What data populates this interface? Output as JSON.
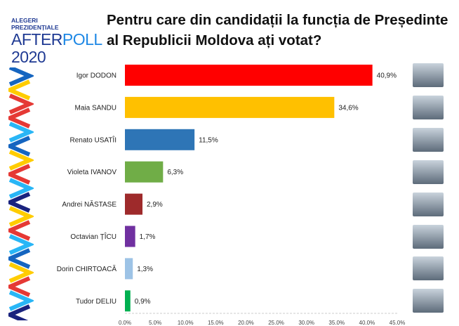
{
  "logo": {
    "line1": "ALEGERI",
    "line2": "PREZIDENȚIALE",
    "after": "AFTER",
    "poll": "POLL",
    "year": "2020"
  },
  "title": "Pentru care din candidații la funcția de Președinte al Republicii Moldova ați votat?",
  "chart_data": {
    "type": "bar",
    "orientation": "horizontal",
    "title": "Pentru care din candidații la funcția de Președinte al Republicii Moldova ați votat?",
    "categories": [
      "Igor DODON",
      "Maia SANDU",
      "Renato USATÎI",
      "Violeta IVANOV",
      "Andrei NĂSTASE",
      "Octavian ȚÎCU",
      "Dorin CHIRTOACĂ",
      "Tudor DELIU"
    ],
    "values": [
      40.9,
      34.6,
      11.5,
      6.3,
      2.9,
      1.7,
      1.3,
      0.9
    ],
    "data_labels": [
      "40,9%",
      "34,6%",
      "11,5%",
      "6,3%",
      "2,9%",
      "1,7%",
      "1,3%",
      "0,9%"
    ],
    "colors": [
      "#ff0000",
      "#ffc000",
      "#2e75b6",
      "#70ad47",
      "#9e2a2b",
      "#7030a0",
      "#9dc3e6",
      "#00b050"
    ],
    "xlim": [
      0,
      45
    ],
    "ticks": [
      "0.0%",
      "5.0%",
      "10.0%",
      "15.0%",
      "20.0%",
      "25.0%",
      "30.0%",
      "35.0%",
      "40.0%",
      "45.0%"
    ],
    "grid": false
  }
}
